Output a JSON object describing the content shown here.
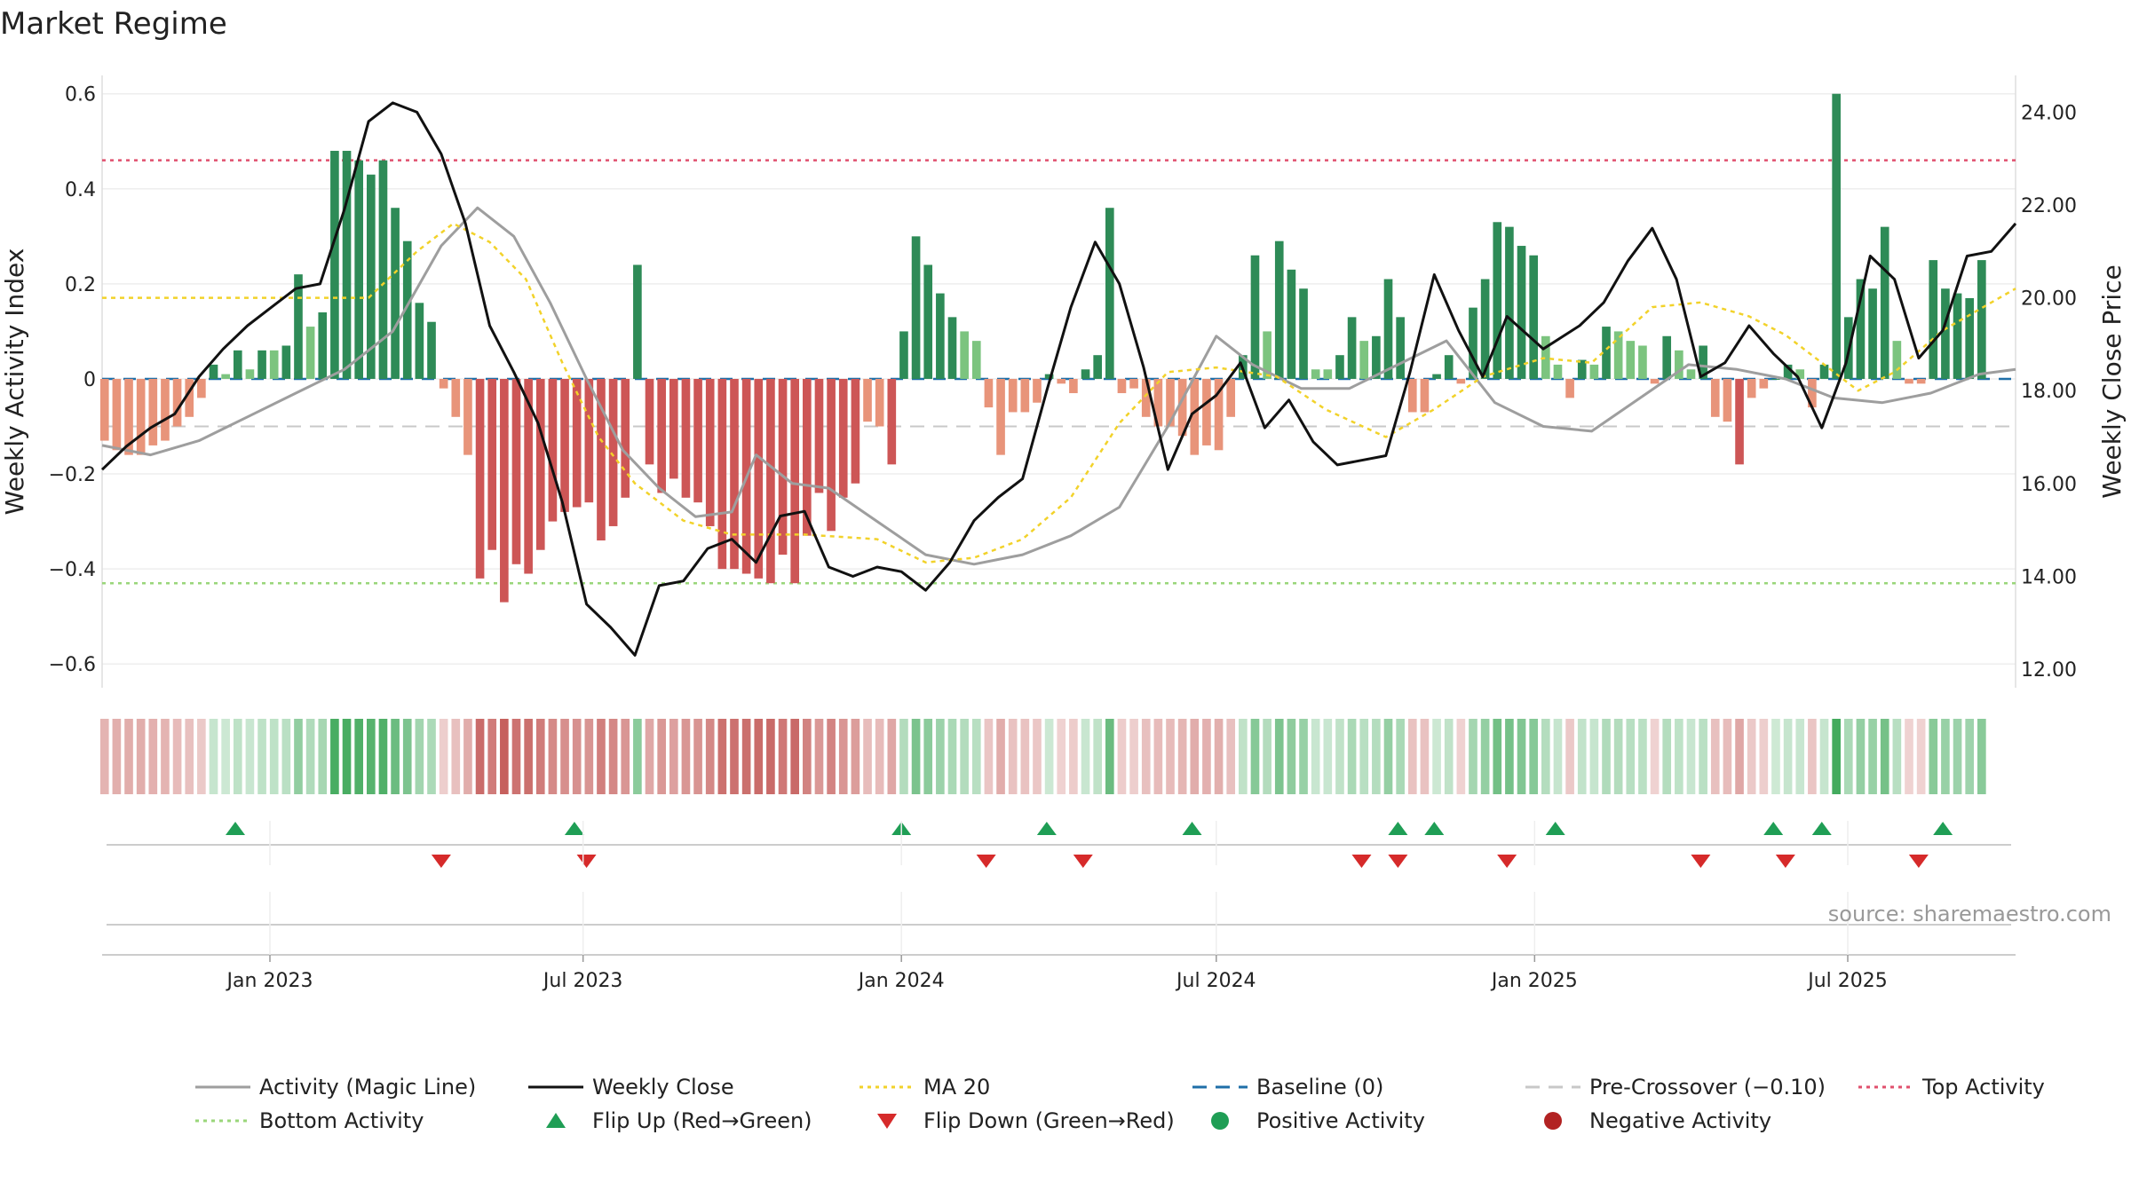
{
  "chart_data": {
    "title": "Market Regime",
    "type": "bar+line",
    "ylabel_left": "Weekly Activity Index",
    "ylabel_right": "Weekly Close Price",
    "ylim_left": [
      -0.65,
      0.62
    ],
    "ylim_right": [
      11.6,
      24.6
    ],
    "yticks_left": [
      0.6,
      0.4,
      0.2,
      0,
      -0.2,
      -0.4,
      -0.6
    ],
    "ytick_labels_left": [
      "0.6",
      "0.4",
      "0.2",
      "0",
      "−0.2",
      "−0.4",
      "−0.6"
    ],
    "yticks_right": [
      24,
      22,
      20,
      18,
      16,
      14,
      12
    ],
    "ytick_labels_right": [
      "24.00",
      "22.00",
      "20.00",
      "18.00",
      "16.00",
      "14.00",
      "12.00"
    ],
    "x_start": "2022-09-26",
    "x_end": "2025-10-06",
    "x_ticks": [
      {
        "date": "2023-01-01",
        "label": "Jan 2023"
      },
      {
        "date": "2023-07-01",
        "label": "Jul 2023"
      },
      {
        "date": "2024-01-01",
        "label": "Jan 2024"
      },
      {
        "date": "2024-07-01",
        "label": "Jul 2024"
      },
      {
        "date": "2025-01-01",
        "label": "Jan 2025"
      },
      {
        "date": "2025-07-01",
        "label": "Jul 2025"
      }
    ],
    "reference_lines": {
      "top_activity": 0.46,
      "bottom_activity": -0.43,
      "pre_crossover": -0.1,
      "baseline": 0
    },
    "activity_start": "2022-09-26",
    "activity": [
      -0.13,
      -0.15,
      -0.16,
      -0.16,
      -0.14,
      -0.13,
      -0.1,
      -0.08,
      -0.04,
      0.03,
      0.01,
      0.06,
      0.02,
      0.06,
      0.06,
      0.07,
      0.22,
      0.11,
      0.14,
      0.48,
      0.48,
      0.46,
      0.43,
      0.46,
      0.36,
      0.29,
      0.16,
      0.12,
      -0.02,
      -0.08,
      -0.16,
      -0.42,
      -0.36,
      -0.47,
      -0.39,
      -0.41,
      -0.36,
      -0.3,
      -0.28,
      -0.27,
      -0.26,
      -0.34,
      -0.31,
      -0.25,
      0.24,
      -0.18,
      -0.24,
      -0.21,
      -0.25,
      -0.26,
      -0.31,
      -0.4,
      -0.4,
      -0.41,
      -0.42,
      -0.43,
      -0.37,
      -0.43,
      -0.33,
      -0.24,
      -0.32,
      -0.25,
      -0.22,
      -0.09,
      -0.1,
      -0.18,
      0.1,
      0.3,
      0.24,
      0.18,
      0.13,
      0.1,
      0.08,
      -0.06,
      -0.16,
      -0.07,
      -0.07,
      -0.05,
      0.01,
      -0.01,
      -0.03,
      0.02,
      0.05,
      0.36,
      -0.03,
      -0.02,
      -0.08,
      -0.1,
      -0.1,
      -0.12,
      -0.16,
      -0.14,
      -0.15,
      -0.08,
      0.05,
      0.26,
      0.1,
      0.29,
      0.23,
      0.19,
      0.02,
      0.02,
      0.05,
      0.13,
      0.08,
      0.09,
      0.21,
      0.13,
      -0.07,
      -0.07,
      0.01,
      0.05,
      -0.01,
      0.15,
      0.21,
      0.33,
      0.32,
      0.28,
      0.26,
      0.09,
      0.03,
      -0.04,
      0.04,
      0.03,
      0.11,
      0.1,
      0.08,
      0.07,
      -0.01,
      0.09,
      0.06,
      0.02,
      0.07,
      -0.08,
      -0.09,
      -0.18,
      -0.04,
      -0.02,
      0.0,
      0.03,
      0.02,
      -0.06,
      0.03,
      0.6,
      0.13,
      0.21,
      0.19,
      0.32,
      0.08,
      -0.01,
      -0.01,
      0.25,
      0.19,
      0.18,
      0.17,
      0.25
    ],
    "activity_colors": {
      "strong_positive": "#2e8b57",
      "weak_positive": "#7cc47f",
      "strong_negative": "#cd5656",
      "weak_negative": "#e8947a"
    },
    "magic_line": {
      "name": "Activity (Magic Line)",
      "color": "#9e9e9e",
      "points": [
        [
          "2022-09-26",
          -0.14
        ],
        [
          "2022-10-24",
          -0.16
        ],
        [
          "2022-11-21",
          -0.13
        ],
        [
          "2022-12-19",
          -0.08
        ],
        [
          "2023-01-16",
          -0.03
        ],
        [
          "2023-02-13",
          0.02
        ],
        [
          "2023-03-13",
          0.1
        ],
        [
          "2023-04-10",
          0.28
        ],
        [
          "2023-05-01",
          0.36
        ],
        [
          "2023-05-22",
          0.3
        ],
        [
          "2023-06-12",
          0.16
        ],
        [
          "2023-07-03",
          0.0
        ],
        [
          "2023-07-24",
          -0.15
        ],
        [
          "2023-08-14",
          -0.23
        ],
        [
          "2023-09-04",
          -0.29
        ],
        [
          "2023-09-25",
          -0.28
        ],
        [
          "2023-10-09",
          -0.16
        ],
        [
          "2023-10-30",
          -0.22
        ],
        [
          "2023-11-20",
          -0.23
        ],
        [
          "2023-12-18",
          -0.3
        ],
        [
          "2024-01-15",
          -0.37
        ],
        [
          "2024-02-12",
          -0.39
        ],
        [
          "2024-03-11",
          -0.37
        ],
        [
          "2024-04-08",
          -0.33
        ],
        [
          "2024-05-06",
          -0.27
        ],
        [
          "2024-06-03",
          -0.1
        ],
        [
          "2024-07-01",
          0.09
        ],
        [
          "2024-07-22",
          0.03
        ],
        [
          "2024-08-19",
          -0.02
        ],
        [
          "2024-09-16",
          -0.02
        ],
        [
          "2024-10-14",
          0.03
        ],
        [
          "2024-11-11",
          0.08
        ],
        [
          "2024-12-09",
          -0.05
        ],
        [
          "2025-01-06",
          -0.1
        ],
        [
          "2025-02-03",
          -0.11
        ],
        [
          "2025-03-03",
          -0.04
        ],
        [
          "2025-03-31",
          0.03
        ],
        [
          "2025-04-28",
          0.02
        ],
        [
          "2025-05-26",
          0.0
        ],
        [
          "2025-06-23",
          -0.04
        ],
        [
          "2025-07-21",
          -0.05
        ],
        [
          "2025-08-18",
          -0.03
        ],
        [
          "2025-09-15",
          0.01
        ],
        [
          "2025-10-06",
          0.02
        ]
      ]
    },
    "weekly_close": {
      "name": "Weekly Close",
      "color": "#111111",
      "points": [
        [
          "2022-09-26",
          16.3
        ],
        [
          "2022-10-10",
          16.8
        ],
        [
          "2022-10-24",
          17.2
        ],
        [
          "2022-11-07",
          17.5
        ],
        [
          "2022-11-21",
          18.3
        ],
        [
          "2022-12-05",
          18.9
        ],
        [
          "2022-12-19",
          19.4
        ],
        [
          "2023-01-02",
          19.8
        ],
        [
          "2023-01-16",
          20.2
        ],
        [
          "2023-01-30",
          20.3
        ],
        [
          "2023-02-13",
          21.9
        ],
        [
          "2023-02-27",
          23.8
        ],
        [
          "2023-03-13",
          24.2
        ],
        [
          "2023-03-27",
          24.0
        ],
        [
          "2023-04-10",
          23.1
        ],
        [
          "2023-04-24",
          21.6
        ],
        [
          "2023-05-08",
          19.4
        ],
        [
          "2023-05-22",
          18.4
        ],
        [
          "2023-06-05",
          17.3
        ],
        [
          "2023-06-19",
          15.6
        ],
        [
          "2023-07-03",
          13.4
        ],
        [
          "2023-07-17",
          12.9
        ],
        [
          "2023-07-31",
          12.3
        ],
        [
          "2023-08-14",
          13.8
        ],
        [
          "2023-08-28",
          13.9
        ],
        [
          "2023-09-11",
          14.6
        ],
        [
          "2023-09-25",
          14.8
        ],
        [
          "2023-10-09",
          14.3
        ],
        [
          "2023-10-23",
          15.3
        ],
        [
          "2023-11-06",
          15.4
        ],
        [
          "2023-11-20",
          14.2
        ],
        [
          "2023-12-04",
          14.0
        ],
        [
          "2023-12-18",
          14.2
        ],
        [
          "2024-01-01",
          14.1
        ],
        [
          "2024-01-15",
          13.7
        ],
        [
          "2024-01-29",
          14.3
        ],
        [
          "2024-02-12",
          15.2
        ],
        [
          "2024-02-26",
          15.7
        ],
        [
          "2024-03-11",
          16.1
        ],
        [
          "2024-03-25",
          18.0
        ],
        [
          "2024-04-08",
          19.8
        ],
        [
          "2024-04-22",
          21.2
        ],
        [
          "2024-05-06",
          20.3
        ],
        [
          "2024-05-20",
          18.5
        ],
        [
          "2024-06-03",
          16.3
        ],
        [
          "2024-06-17",
          17.5
        ],
        [
          "2024-07-01",
          17.9
        ],
        [
          "2024-07-15",
          18.6
        ],
        [
          "2024-07-29",
          17.2
        ],
        [
          "2024-08-12",
          17.8
        ],
        [
          "2024-08-26",
          16.9
        ],
        [
          "2024-09-09",
          16.4
        ],
        [
          "2024-09-23",
          16.5
        ],
        [
          "2024-10-07",
          16.6
        ],
        [
          "2024-10-21",
          18.4
        ],
        [
          "2024-11-04",
          20.5
        ],
        [
          "2024-11-18",
          19.3
        ],
        [
          "2024-12-02",
          18.3
        ],
        [
          "2024-12-16",
          19.6
        ],
        [
          "2025-01-06",
          18.9
        ],
        [
          "2025-01-27",
          19.4
        ],
        [
          "2025-02-10",
          19.9
        ],
        [
          "2025-02-24",
          20.8
        ],
        [
          "2025-03-10",
          21.5
        ],
        [
          "2025-03-24",
          20.4
        ],
        [
          "2025-04-07",
          18.3
        ],
        [
          "2025-04-21",
          18.6
        ],
        [
          "2025-05-05",
          19.4
        ],
        [
          "2025-05-19",
          18.8
        ],
        [
          "2025-06-02",
          18.3
        ],
        [
          "2025-06-16",
          17.2
        ],
        [
          "2025-06-30",
          18.6
        ],
        [
          "2025-07-14",
          20.9
        ],
        [
          "2025-07-28",
          20.4
        ],
        [
          "2025-08-11",
          18.7
        ],
        [
          "2025-08-25",
          19.3
        ],
        [
          "2025-09-08",
          20.9
        ],
        [
          "2025-09-22",
          21.0
        ],
        [
          "2025-10-06",
          21.6
        ]
      ]
    },
    "ma20": {
      "name": "MA 20",
      "color": "#f2d22a",
      "points": [
        [
          "2022-09-26",
          20.0
        ],
        [
          "2022-12-05",
          20.0
        ],
        [
          "2023-02-27",
          20.0
        ],
        [
          "2023-03-27",
          21.0
        ],
        [
          "2023-04-17",
          21.6
        ],
        [
          "2023-05-08",
          21.2
        ],
        [
          "2023-05-29",
          20.4
        ],
        [
          "2023-06-19",
          18.6
        ],
        [
          "2023-07-10",
          17.0
        ],
        [
          "2023-07-31",
          16.0
        ],
        [
          "2023-08-28",
          15.2
        ],
        [
          "2023-09-25",
          14.9
        ],
        [
          "2023-11-06",
          14.9
        ],
        [
          "2023-12-18",
          14.8
        ],
        [
          "2024-01-15",
          14.3
        ],
        [
          "2024-02-12",
          14.4
        ],
        [
          "2024-03-11",
          14.8
        ],
        [
          "2024-04-08",
          15.7
        ],
        [
          "2024-05-06",
          17.3
        ],
        [
          "2024-06-03",
          18.4
        ],
        [
          "2024-07-01",
          18.5
        ],
        [
          "2024-08-05",
          18.3
        ],
        [
          "2024-09-02",
          17.6
        ],
        [
          "2024-10-07",
          17.0
        ],
        [
          "2024-11-04",
          17.6
        ],
        [
          "2024-12-02",
          18.3
        ],
        [
          "2025-01-06",
          18.7
        ],
        [
          "2025-02-03",
          18.6
        ],
        [
          "2025-03-10",
          19.8
        ],
        [
          "2025-04-07",
          19.9
        ],
        [
          "2025-05-05",
          19.6
        ],
        [
          "2025-05-26",
          19.2
        ],
        [
          "2025-06-16",
          18.6
        ],
        [
          "2025-07-07",
          18.0
        ],
        [
          "2025-07-28",
          18.4
        ],
        [
          "2025-08-25",
          19.3
        ],
        [
          "2025-10-06",
          20.2
        ]
      ]
    },
    "flip_up": [
      "2022-12-12",
      "2023-06-26",
      "2024-01-01",
      "2024-03-25",
      "2024-06-17",
      "2024-10-14",
      "2024-11-04",
      "2025-01-13",
      "2025-05-19",
      "2025-06-16",
      "2025-08-25"
    ],
    "flip_down": [
      "2023-04-10",
      "2023-07-03",
      "2024-02-19",
      "2024-04-15",
      "2024-09-23",
      "2024-10-14",
      "2024-12-16",
      "2025-04-07",
      "2025-05-26",
      "2025-08-11"
    ],
    "legend": [
      {
        "label": "Activity (Magic Line)",
        "style": "line",
        "color": "#9e9e9e"
      },
      {
        "label": "Weekly Close",
        "style": "line",
        "color": "#111111"
      },
      {
        "label": "MA 20",
        "style": "dotted",
        "color": "#f2d22a"
      },
      {
        "label": "Baseline (0)",
        "style": "dashed",
        "color": "#1f6fa8"
      },
      {
        "label": "Pre-Crossover (−0.10)",
        "style": "dashed",
        "color": "#c8c8c8"
      },
      {
        "label": "Top Activity",
        "style": "dotted",
        "color": "#e0506e"
      },
      {
        "label": "Bottom Activity",
        "style": "dotted",
        "color": "#9ad67a"
      },
      {
        "label": "Flip Up (Red→Green)",
        "style": "triangle-up",
        "color": "#1f9e55"
      },
      {
        "label": "Flip Down (Green→Red)",
        "style": "triangle-down",
        "color": "#d62a2a"
      },
      {
        "label": "Positive Activity",
        "style": "circle",
        "color": "#1f9e55"
      },
      {
        "label": "Negative Activity",
        "style": "circle",
        "color": "#b22222"
      }
    ],
    "source_text": "source: sharemaestro.com"
  }
}
